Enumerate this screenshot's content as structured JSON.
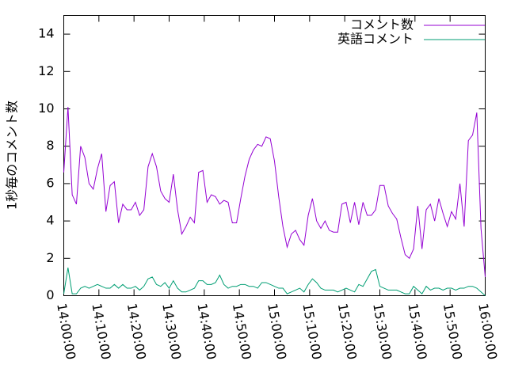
{
  "chart_data": {
    "type": "line",
    "ylabel": "1秒毎のコメント数",
    "x": [
      "14:00:00",
      "14:01:12",
      "14:02:24",
      "14:03:36",
      "14:04:48",
      "14:06:00",
      "14:07:12",
      "14:08:24",
      "14:09:36",
      "14:10:48",
      "14:12:00",
      "14:13:12",
      "14:14:24",
      "14:15:36",
      "14:16:48",
      "14:18:00",
      "14:19:12",
      "14:20:24",
      "14:21:36",
      "14:22:48",
      "14:24:00",
      "14:25:12",
      "14:26:24",
      "14:27:36",
      "14:28:48",
      "14:30:00",
      "14:31:12",
      "14:32:24",
      "14:33:36",
      "14:34:48",
      "14:36:00",
      "14:37:12",
      "14:38:24",
      "14:39:36",
      "14:40:48",
      "14:42:00",
      "14:43:12",
      "14:44:24",
      "14:45:36",
      "14:46:48",
      "14:48:00",
      "14:49:12",
      "14:50:24",
      "14:51:36",
      "14:52:48",
      "14:54:00",
      "14:55:12",
      "14:56:24",
      "14:57:36",
      "14:58:48",
      "15:00:00",
      "15:01:12",
      "15:02:24",
      "15:03:36",
      "15:04:48",
      "15:06:00",
      "15:07:12",
      "15:08:24",
      "15:09:36",
      "15:10:48",
      "15:12:00",
      "15:13:12",
      "15:14:24",
      "15:15:36",
      "15:16:48",
      "15:18:00",
      "15:19:12",
      "15:20:24",
      "15:21:36",
      "15:22:48",
      "15:24:00",
      "15:25:12",
      "15:26:24",
      "15:27:36",
      "15:28:48",
      "15:30:00",
      "15:31:12",
      "15:32:24",
      "15:33:36",
      "15:34:48",
      "15:36:00",
      "15:37:12",
      "15:38:24",
      "15:39:36",
      "15:40:48",
      "15:42:00",
      "15:43:12",
      "15:44:24",
      "15:45:36",
      "15:46:48",
      "15:48:00",
      "15:49:12",
      "15:50:24",
      "15:51:36",
      "15:52:48",
      "15:54:00",
      "15:55:12",
      "15:56:24",
      "15:57:36",
      "15:58:48",
      "16:00:00"
    ],
    "series": [
      {
        "name": "コメント数",
        "color": "#9400d3",
        "values": [
          6.6,
          10.1,
          5.4,
          4.9,
          8.0,
          7.4,
          6.0,
          5.7,
          6.8,
          7.6,
          4.5,
          5.9,
          6.1,
          3.9,
          4.9,
          4.6,
          4.6,
          5.0,
          4.3,
          4.6,
          6.9,
          7.6,
          6.9,
          5.6,
          5.2,
          5.0,
          6.5,
          4.6,
          3.3,
          3.7,
          4.2,
          3.9,
          6.6,
          6.7,
          5.0,
          5.4,
          5.3,
          4.9,
          5.1,
          5.0,
          3.9,
          3.9,
          5.2,
          6.4,
          7.3,
          7.8,
          8.1,
          8.0,
          8.5,
          8.4,
          7.2,
          5.3,
          3.7,
          2.6,
          3.3,
          3.5,
          3.0,
          2.7,
          4.3,
          5.2,
          4.0,
          3.6,
          4.0,
          3.5,
          3.4,
          3.4,
          4.9,
          5.0,
          3.9,
          5.0,
          3.8,
          5.0,
          4.3,
          4.3,
          4.6,
          5.9,
          5.9,
          4.8,
          4.4,
          4.1,
          3.1,
          2.2,
          2.0,
          2.5,
          4.8,
          2.5,
          4.6,
          4.9,
          4.0,
          5.2,
          4.4,
          3.7,
          4.5,
          4.1,
          6.0,
          3.7,
          8.3,
          8.6,
          9.8,
          3.6,
          1.0
        ]
      },
      {
        "name": "英語コメント",
        "color": "#009e73",
        "values": [
          0.1,
          1.5,
          0.1,
          0.1,
          0.4,
          0.5,
          0.4,
          0.5,
          0.6,
          0.5,
          0.4,
          0.4,
          0.6,
          0.4,
          0.6,
          0.4,
          0.4,
          0.5,
          0.3,
          0.5,
          0.9,
          1.0,
          0.6,
          0.5,
          0.7,
          0.4,
          0.8,
          0.4,
          0.2,
          0.2,
          0.3,
          0.4,
          0.8,
          0.8,
          0.6,
          0.6,
          0.7,
          1.1,
          0.6,
          0.4,
          0.5,
          0.5,
          0.6,
          0.6,
          0.5,
          0.5,
          0.4,
          0.7,
          0.7,
          0.6,
          0.5,
          0.4,
          0.4,
          0.1,
          0.2,
          0.3,
          0.4,
          0.2,
          0.6,
          0.9,
          0.7,
          0.4,
          0.3,
          0.3,
          0.3,
          0.2,
          0.3,
          0.4,
          0.3,
          0.2,
          0.6,
          0.5,
          0.9,
          1.3,
          1.4,
          0.5,
          0.4,
          0.3,
          0.3,
          0.3,
          0.2,
          0.1,
          0.1,
          0.5,
          0.3,
          0.1,
          0.5,
          0.3,
          0.4,
          0.4,
          0.3,
          0.4,
          0.4,
          0.3,
          0.4,
          0.4,
          0.5,
          0.5,
          0.4,
          0.2,
          0.0
        ]
      }
    ],
    "xlim": [
      "14:00:00",
      "16:00:00"
    ],
    "xticks": [
      "14:00:00",
      "14:10:00",
      "14:20:00",
      "14:30:00",
      "14:40:00",
      "14:50:00",
      "15:00:00",
      "15:10:00",
      "15:20:00",
      "15:30:00",
      "15:40:00",
      "15:50:00",
      "16:00:00"
    ],
    "ylim": [
      0,
      15
    ],
    "yticks": [
      0,
      2,
      4,
      6,
      8,
      10,
      12,
      14
    ],
    "legend": "top-right"
  }
}
